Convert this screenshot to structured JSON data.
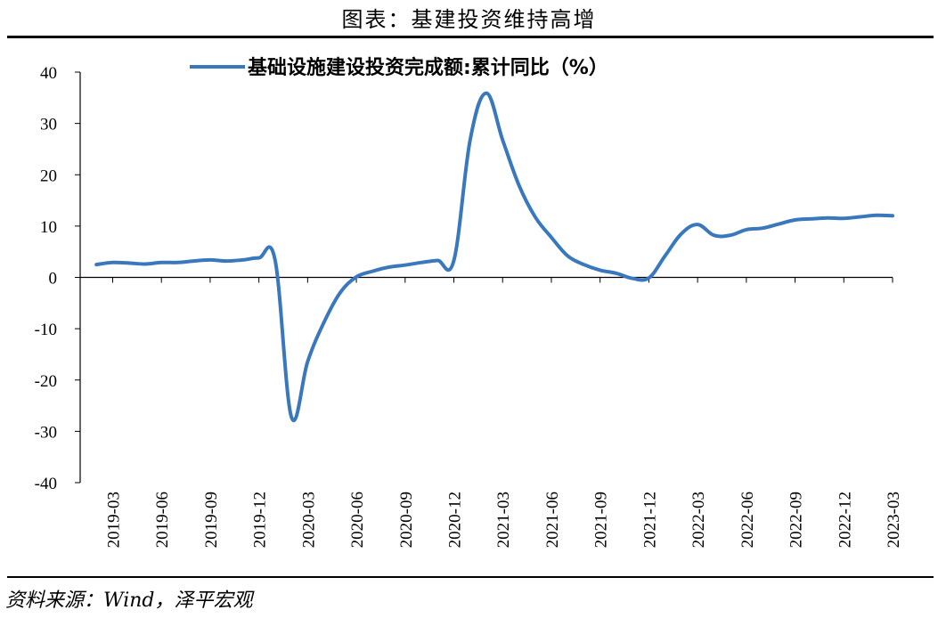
{
  "figure_title": "图表：基建投资维持高增",
  "source_note": "资料来源：Wind，泽平宏观",
  "colors": {
    "series": "#3A78BE",
    "axis": "#000000"
  },
  "chart_data": {
    "type": "line",
    "legend_position": "top",
    "grid": false,
    "ylim": [
      -40,
      40
    ],
    "y_ticks": [
      "40",
      "30",
      "20",
      "10",
      "0",
      "-10",
      "-20",
      "-30",
      "-40"
    ],
    "x_tick_labels": [
      "2019-03",
      "2019-06",
      "2019-09",
      "2019-12",
      "2020-03",
      "2020-06",
      "2020-09",
      "2020-12",
      "2021-03",
      "2021-06",
      "2021-09",
      "2021-12",
      "2022-03",
      "2022-06",
      "2022-09",
      "2022-12",
      "2023-03"
    ],
    "x": [
      "2019-02",
      "2019-03",
      "2019-04",
      "2019-05",
      "2019-06",
      "2019-07",
      "2019-08",
      "2019-09",
      "2019-10",
      "2019-11",
      "2019-12",
      "2020-01",
      "2020-02",
      "2020-03",
      "2020-04",
      "2020-05",
      "2020-06",
      "2020-07",
      "2020-08",
      "2020-09",
      "2020-10",
      "2020-11",
      "2020-12",
      "2021-01",
      "2021-02",
      "2021-03",
      "2021-04",
      "2021-05",
      "2021-06",
      "2021-07",
      "2021-08",
      "2021-09",
      "2021-10",
      "2021-11",
      "2021-12",
      "2022-01",
      "2022-02",
      "2022-03",
      "2022-04",
      "2022-05",
      "2022-06",
      "2022-07",
      "2022-08",
      "2022-09",
      "2022-10",
      "2022-11",
      "2022-12",
      "2023-01",
      "2023-02",
      "2023-03"
    ],
    "series": [
      {
        "name": "基础设施建设投资完成额:累计同比（%）",
        "values": [
          2.5,
          2.9,
          2.8,
          2.6,
          2.9,
          2.9,
          3.2,
          3.4,
          3.2,
          3.4,
          3.8,
          3.3,
          -27.2,
          -16.4,
          -8.8,
          -3.0,
          0.1,
          1.2,
          2.0,
          2.4,
          2.9,
          3.3,
          3.3,
          26.8,
          35.9,
          26.8,
          18.0,
          11.8,
          7.8,
          4.2,
          2.5,
          1.4,
          0.8,
          -0.2,
          -0.1,
          4.2,
          8.5,
          10.3,
          8.2,
          8.2,
          9.3,
          9.6,
          10.4,
          11.2,
          11.4,
          11.6,
          11.5,
          11.8,
          12.1,
          12.0
        ]
      }
    ]
  }
}
